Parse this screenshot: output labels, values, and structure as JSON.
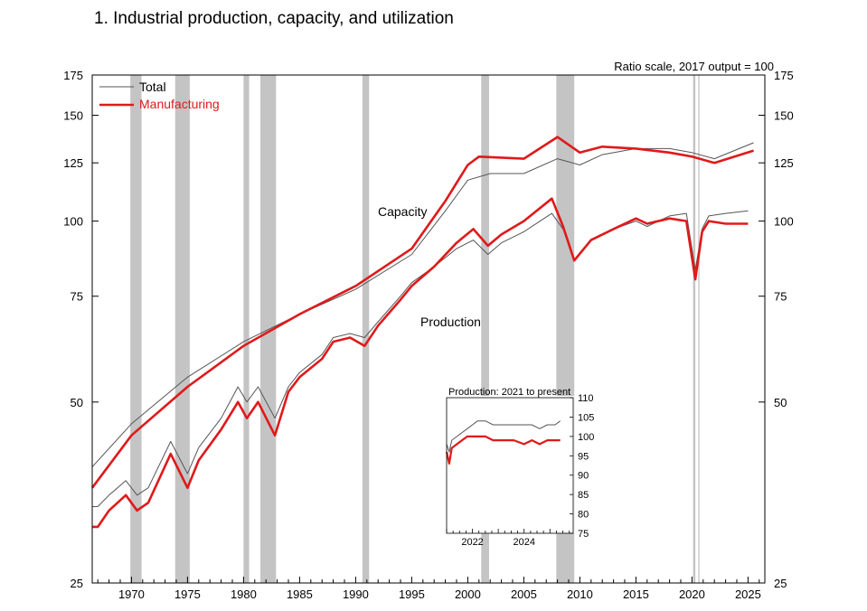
{
  "chart_data": {
    "type": "line",
    "title": "1.  Industrial production, capacity, and utilization",
    "scale_note": "Ratio scale, 2017 output = 100",
    "y_scale": "log",
    "ylim": [
      25,
      175
    ],
    "xlim": [
      1966.5,
      2026.5
    ],
    "y_ticks": [
      25,
      50,
      75,
      100,
      125,
      150,
      175
    ],
    "x_ticks": [
      1970,
      1975,
      1980,
      1985,
      1990,
      1995,
      2000,
      2005,
      2010,
      2015,
      2020,
      2025
    ],
    "legend": {
      "position": "top-left",
      "entries": [
        "Total",
        "Manufacturing"
      ]
    },
    "colors": {
      "total": "#555555",
      "manufacturing": "#e0191a",
      "recession": "#c4c4c4"
    },
    "recessions": [
      [
        1969.9,
        1970.9
      ],
      [
        1973.9,
        1975.2
      ],
      [
        1980.0,
        1980.5
      ],
      [
        1981.5,
        1982.9
      ],
      [
        1990.6,
        1991.2
      ],
      [
        2001.2,
        2001.9
      ],
      [
        2007.9,
        2009.5
      ],
      [
        2020.1,
        2020.3
      ]
    ],
    "annotations": {
      "capacity": "Capacity",
      "production": "Production"
    },
    "series": [
      {
        "name": "Total capacity",
        "x": [
          1966.5,
          1970,
          1975,
          1980,
          1985,
          1990,
          1995,
          1998,
          2000,
          2002,
          2005,
          2008,
          2010,
          2012,
          2015,
          2018,
          2020,
          2022,
          2025.5
        ],
        "y": [
          39,
          46,
          55,
          63,
          70,
          77,
          88,
          104,
          117,
          120,
          120,
          127,
          124,
          129,
          132,
          132,
          130,
          127,
          135
        ]
      },
      {
        "name": "Manufacturing capacity",
        "x": [
          1966.5,
          1970,
          1975,
          1980,
          1985,
          1990,
          1995,
          1998,
          2000,
          2001,
          2005,
          2008,
          2010,
          2012,
          2015,
          2018,
          2020,
          2022,
          2025.5
        ],
        "y": [
          36,
          44,
          53,
          62,
          70,
          78,
          90,
          108,
          124,
          128,
          127,
          138,
          130,
          133,
          132,
          130,
          128,
          125,
          131
        ]
      },
      {
        "name": "Total production",
        "x": [
          1966.5,
          1967,
          1968,
          1969.5,
          1970.5,
          1971.5,
          1973.5,
          1975,
          1976,
          1978,
          1979.5,
          1980.3,
          1981.3,
          1982.8,
          1984,
          1985,
          1987,
          1988,
          1989.5,
          1990.8,
          1992,
          1994,
          1995,
          1997,
          1999,
          2000.5,
          2001.8,
          2003,
          2005,
          2007.5,
          2008.5,
          2009.5,
          2011,
          2013,
          2015,
          2016,
          2018,
          2019.5,
          2020.3,
          2020.9,
          2021.5,
          2023,
          2025
        ],
        "y": [
          33.5,
          33.5,
          35,
          37,
          35,
          36,
          43,
          38,
          42,
          47,
          53,
          50,
          53,
          47,
          53,
          56,
          60,
          64,
          65,
          64,
          68,
          75,
          79,
          84,
          90,
          93,
          88,
          92,
          96,
          103,
          97,
          86,
          93,
          97,
          100,
          98,
          102,
          103,
          83,
          97,
          102,
          103,
          104
        ]
      },
      {
        "name": "Manufacturing production",
        "x": [
          1966.5,
          1967,
          1968,
          1969.5,
          1970.5,
          1971.5,
          1973.5,
          1975,
          1976,
          1978,
          1979.5,
          1980.3,
          1981.3,
          1982.8,
          1984,
          1985,
          1987,
          1988,
          1989.5,
          1990.8,
          1992,
          1994,
          1995,
          1997,
          1999,
          2000.5,
          2001.8,
          2003,
          2005,
          2007.5,
          2008.5,
          2009.5,
          2011,
          2013,
          2015,
          2016,
          2018,
          2019.5,
          2020.3,
          2020.9,
          2021.5,
          2023,
          2025
        ],
        "y": [
          31,
          31,
          33,
          35,
          33,
          34,
          41,
          36,
          40,
          45,
          50,
          47,
          50,
          44,
          52,
          55,
          59,
          63,
          64,
          62,
          67,
          74,
          78,
          84,
          92,
          97,
          91,
          95,
          100,
          109,
          98,
          86,
          93,
          97,
          101,
          99,
          101,
          100,
          80,
          96,
          100,
          99,
          99
        ]
      }
    ],
    "inset": {
      "title": "Production: 2021 to present",
      "y_ticks": [
        75,
        80,
        85,
        90,
        95,
        100,
        105,
        110
      ],
      "x_ticks": [
        2022,
        2024
      ],
      "xlim": [
        2021.0,
        2025.9
      ],
      "ylim": [
        75,
        110
      ],
      "series": [
        {
          "name": "Total",
          "x": [
            2021.0,
            2021.1,
            2021.2,
            2021.4,
            2021.6,
            2021.8,
            2022.0,
            2022.2,
            2022.5,
            2022.8,
            2023.0,
            2023.3,
            2023.6,
            2024.0,
            2024.3,
            2024.6,
            2024.9,
            2025.2,
            2025.4
          ],
          "y": [
            98,
            96,
            99,
            100,
            101,
            102,
            103,
            104,
            104,
            103,
            103,
            103,
            103,
            103,
            103,
            102,
            103,
            103,
            104
          ]
        },
        {
          "name": "Manufacturing",
          "x": [
            2021.0,
            2021.1,
            2021.2,
            2021.4,
            2021.6,
            2021.8,
            2022.0,
            2022.2,
            2022.5,
            2022.8,
            2023.0,
            2023.3,
            2023.6,
            2024.0,
            2024.3,
            2024.6,
            2024.9,
            2025.2,
            2025.4
          ],
          "y": [
            96,
            93,
            97,
            98,
            99,
            100,
            100,
            100,
            100,
            99,
            99,
            99,
            99,
            98,
            99,
            98,
            99,
            99,
            99
          ]
        }
      ]
    }
  }
}
